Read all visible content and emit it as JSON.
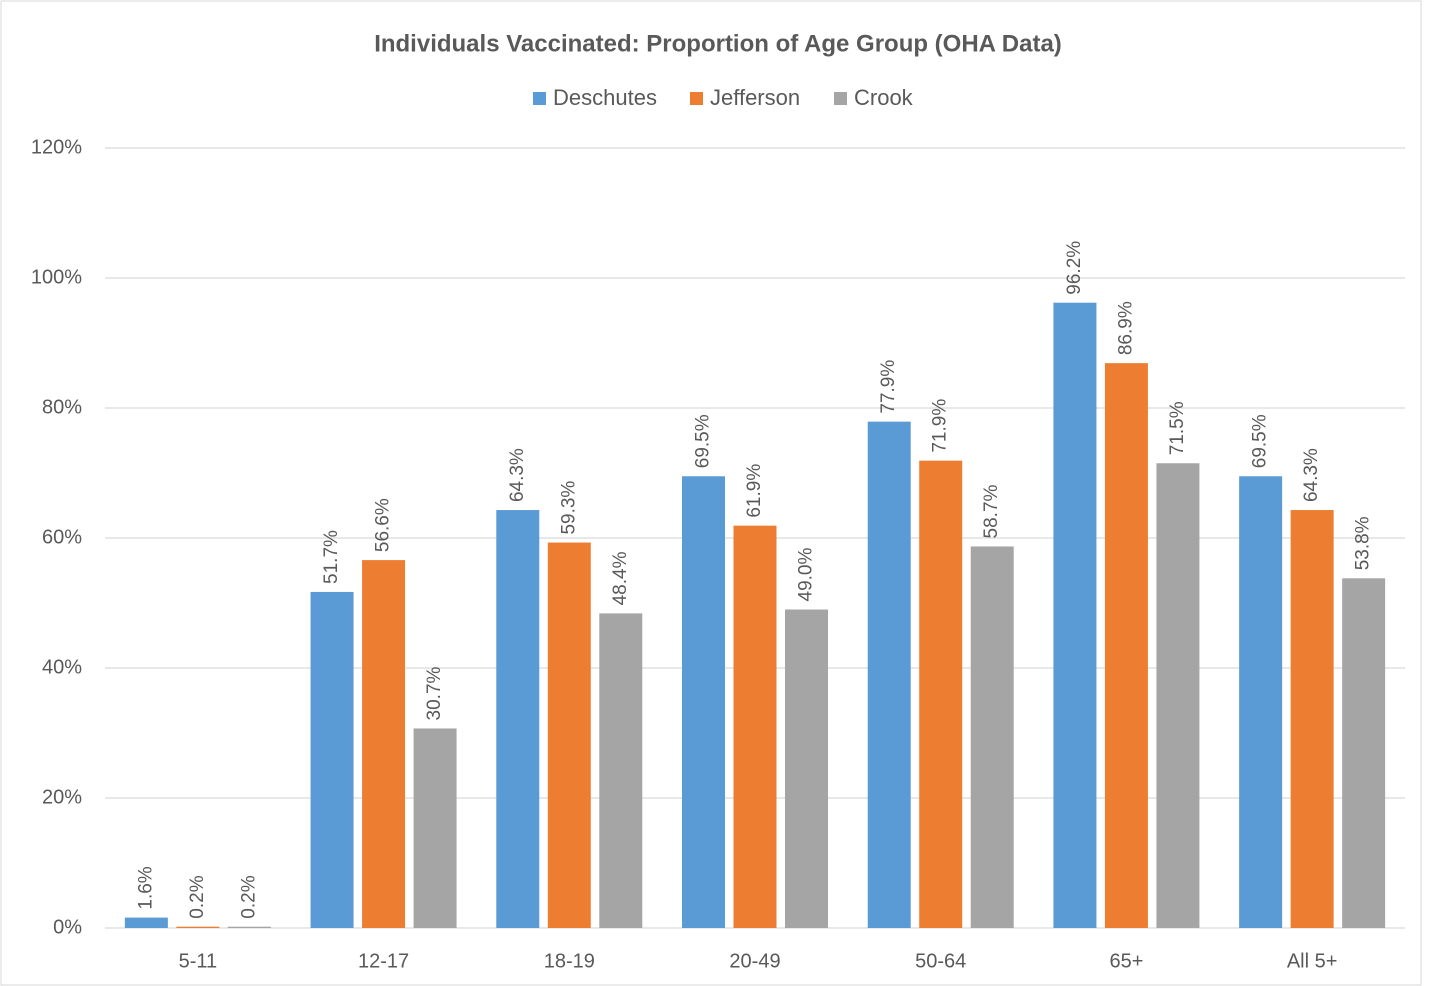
{
  "chart_data": {
    "type": "bar",
    "title": "Individuals Vaccinated: Proportion of Age Group (OHA Data)",
    "categories": [
      "5-11",
      "12-17",
      "18-19",
      "20-49",
      "50-64",
      "65+",
      "All 5+"
    ],
    "series": [
      {
        "name": "Deschutes",
        "color": "#5b9bd5",
        "values": [
          1.6,
          51.7,
          64.3,
          69.5,
          77.9,
          96.2,
          69.5
        ],
        "value_labels": [
          "1.6%",
          "51.7%",
          "64.3%",
          "69.5%",
          "77.9%",
          "96.2%",
          "69.5%"
        ]
      },
      {
        "name": "Jefferson",
        "color": "#ed7d31",
        "values": [
          0.2,
          56.6,
          59.3,
          61.9,
          71.9,
          86.9,
          64.3
        ],
        "value_labels": [
          "0.2%",
          "56.6%",
          "59.3%",
          "61.9%",
          "71.9%",
          "86.9%",
          "64.3%"
        ]
      },
      {
        "name": "Crook",
        "color": "#a5a5a5",
        "values": [
          0.2,
          30.7,
          48.4,
          49.0,
          58.7,
          71.5,
          53.8
        ],
        "value_labels": [
          "0.2%",
          "30.7%",
          "48.4%",
          "49.0%",
          "58.7%",
          "71.5%",
          "53.8%"
        ]
      }
    ],
    "ylim": [
      0,
      120
    ],
    "yticks": [
      {
        "value": 0,
        "label": "0%"
      },
      {
        "value": 20,
        "label": "20%"
      },
      {
        "value": 40,
        "label": "40%"
      },
      {
        "value": 60,
        "label": "60%"
      },
      {
        "value": 80,
        "label": "80%"
      },
      {
        "value": 100,
        "label": "100%"
      },
      {
        "value": 120,
        "label": "120%"
      }
    ],
    "grid": true,
    "legend": "top"
  }
}
